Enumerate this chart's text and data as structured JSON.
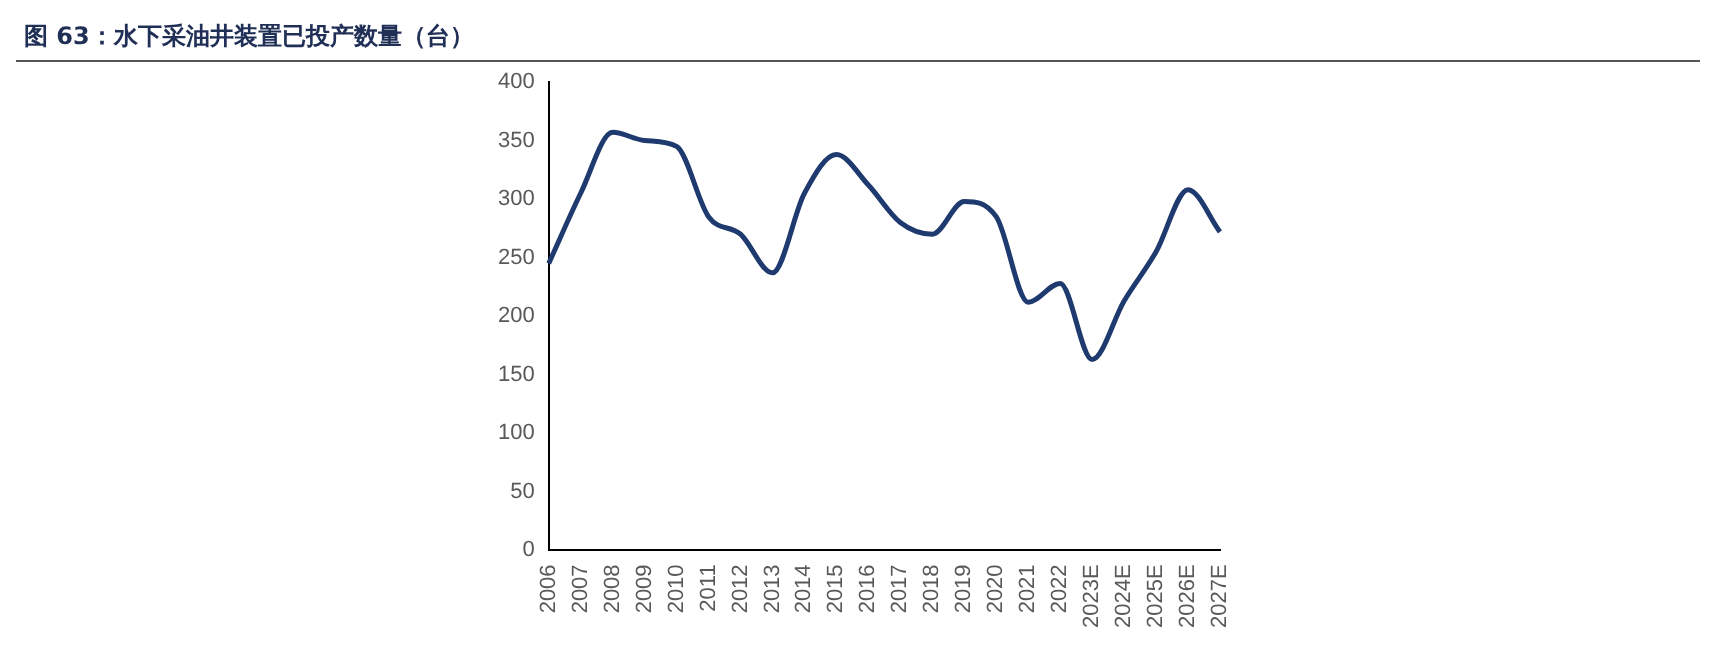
{
  "chart_data": {
    "type": "line",
    "title": "图 63：水下采油井装置已投产数量（台）",
    "categories": [
      "2006",
      "2007",
      "2008",
      "2009",
      "2010",
      "2011",
      "2012",
      "2013",
      "2014",
      "2015",
      "2016",
      "2017",
      "2018",
      "2019",
      "2020",
      "2021",
      "2022",
      "2023E",
      "2024E",
      "2025E",
      "2026E",
      "2027E"
    ],
    "series": [
      {
        "color": "#1f3a6e",
        "values": [
          245,
          305,
          357,
          350,
          345,
          285,
          270,
          237,
          305,
          338,
          312,
          280,
          270,
          298,
          285,
          212,
          228,
          163,
          213,
          255,
          308,
          272
        ]
      }
    ],
    "ylim": [
      0,
      400
    ],
    "yticks": [
      0,
      50,
      100,
      150,
      200,
      250,
      300,
      350,
      400
    ],
    "grid": false,
    "legend": false,
    "marker": "none",
    "line_style": "solid"
  }
}
